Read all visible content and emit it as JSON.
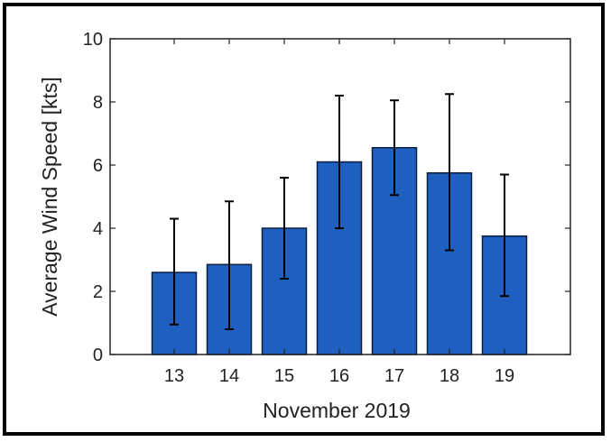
{
  "chart_data": {
    "type": "bar",
    "title": "",
    "xlabel": "November 2019",
    "ylabel": "Average Wind Speed [kts]",
    "categories": [
      "13",
      "14",
      "15",
      "16",
      "17",
      "18",
      "19"
    ],
    "values": [
      2.6,
      2.85,
      4.0,
      6.1,
      6.55,
      5.75,
      3.75
    ],
    "error_low": [
      0.95,
      0.8,
      2.4,
      4.0,
      5.05,
      3.3,
      1.85
    ],
    "error_high": [
      4.3,
      4.85,
      5.6,
      8.2,
      8.05,
      8.25,
      5.7
    ],
    "ylim": [
      0,
      10
    ],
    "yticks": [
      "0",
      "2",
      "4",
      "6",
      "8",
      "10"
    ],
    "grid": false,
    "bar_color": "#1f5fbf",
    "bar_edge_color": "#0a1f40",
    "error_bar_color": "#000000"
  }
}
